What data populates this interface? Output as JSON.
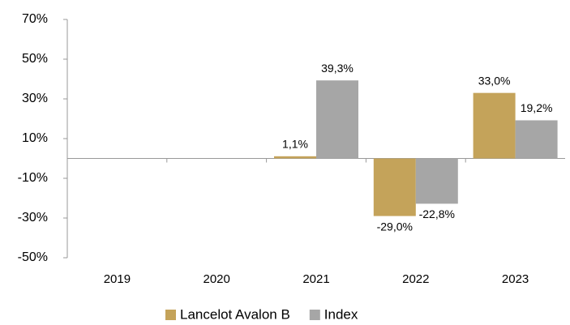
{
  "chart_data": {
    "type": "bar",
    "categories": [
      "2019",
      "2020",
      "2021",
      "2022",
      "2023"
    ],
    "series": [
      {
        "name": "Lancelot Avalon B",
        "color": "#c4a35a",
        "values": [
          null,
          null,
          1.1,
          -29.0,
          33.0
        ],
        "value_labels": [
          null,
          null,
          "1,1%",
          "-29,0%",
          "33,0%"
        ]
      },
      {
        "name": "Index",
        "color": "#a6a6a6",
        "values": [
          null,
          null,
          39.3,
          -22.8,
          19.2
        ],
        "value_labels": [
          null,
          null,
          "39,3%",
          "-22,8%",
          "19,2%"
        ]
      }
    ],
    "ylim": [
      -50,
      70
    ],
    "yticks": [
      {
        "value": -50,
        "label": "-50%"
      },
      {
        "value": -30,
        "label": "-30%"
      },
      {
        "value": -10,
        "label": "-10%"
      },
      {
        "value": 10,
        "label": "10%"
      },
      {
        "value": 30,
        "label": "30%"
      },
      {
        "value": 50,
        "label": "50%"
      },
      {
        "value": 70,
        "label": "70%"
      }
    ],
    "grid": false,
    "legend": "bottom"
  }
}
